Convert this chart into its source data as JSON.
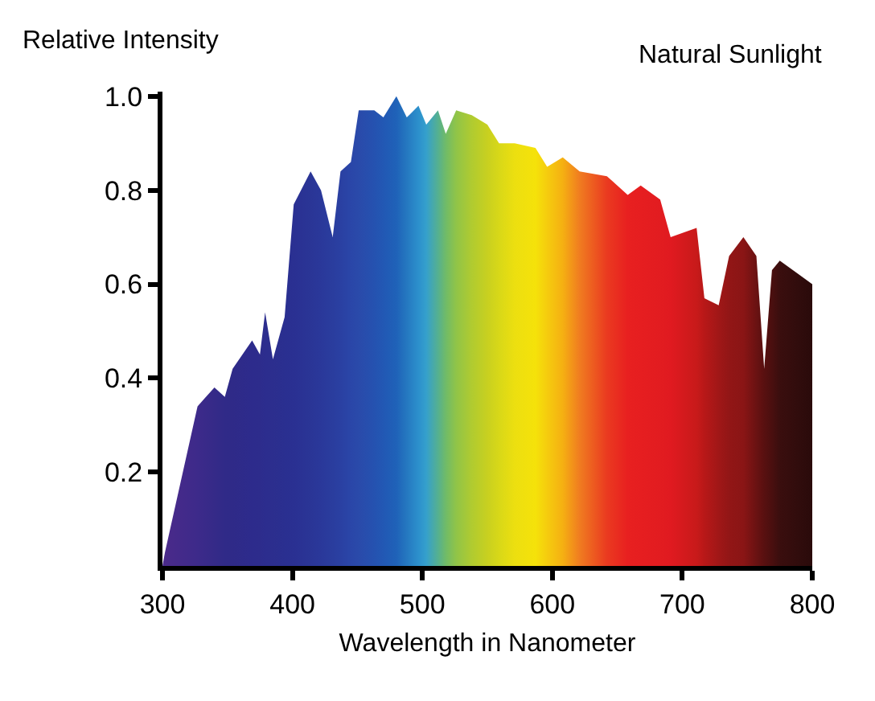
{
  "chart_data": {
    "type": "area",
    "title": "Natural Sunlight",
    "ylabel": "Relative Intensity",
    "xlabel": "Wavelength in Nanometer",
    "xlim": [
      300,
      800
    ],
    "xticks": [
      300,
      400,
      500,
      600,
      700,
      800
    ],
    "ylim": [
      0,
      1.01
    ],
    "yticks": [
      {
        "value": 0.2,
        "label": "0.2"
      },
      {
        "value": 0.4,
        "label": "0.4"
      },
      {
        "value": 0.6,
        "label": "0.6"
      },
      {
        "value": 0.8,
        "label": "0.8"
      },
      {
        "value": 1,
        "label": "1.0"
      }
    ],
    "legend": false,
    "series": [
      {
        "x": [
          300,
          302,
          327,
          340,
          348,
          354,
          369,
          375,
          379,
          385,
          394,
          401,
          414,
          422,
          431,
          437,
          445,
          451,
          463,
          470,
          480,
          488,
          497,
          503,
          512,
          518,
          526,
          538,
          550,
          559,
          571,
          587,
          596,
          608,
          621,
          642,
          658,
          668,
          683,
          691,
          711,
          717,
          728,
          736,
          747,
          757,
          763,
          769,
          775,
          790,
          800
        ],
        "values": [
          0,
          0.03,
          0.34,
          0.38,
          0.36,
          0.42,
          0.48,
          0.45,
          0.54,
          0.44,
          0.53,
          0.77,
          0.84,
          0.8,
          0.7,
          0.84,
          0.86,
          0.97,
          0.97,
          0.955,
          1.0,
          0.955,
          0.98,
          0.94,
          0.97,
          0.92,
          0.97,
          0.96,
          0.94,
          0.9,
          0.9,
          0.89,
          0.85,
          0.87,
          0.84,
          0.83,
          0.79,
          0.81,
          0.78,
          0.7,
          0.72,
          0.57,
          0.555,
          0.66,
          0.7,
          0.66,
          0.42,
          0.63,
          0.65,
          0.62,
          0.6
        ],
        "colors": [
          "#4a2a8a",
          "#4a2a8a",
          "#3d2a8a",
          "#352a88",
          "#302a88",
          "#2f2a88",
          "#2d2b8c",
          "#2d2c8c",
          "#2c2d8e",
          "#2c2e8e",
          "#2a2f90",
          "#2a3092",
          "#2a3596",
          "#2a389a",
          "#2a3d9e",
          "#2a40a2",
          "#2a46a8",
          "#2a4aaa",
          "#2552b0",
          "#2258b4",
          "#1f62b8",
          "#2578c0",
          "#2c90cc",
          "#35a0cc",
          "#55b090",
          "#70bb68",
          "#90c448",
          "#b0cb30",
          "#c8d020",
          "#d8d818",
          "#ecdf10",
          "#f5e20a",
          "#f5cc0e",
          "#f5b012",
          "#f07c20",
          "#ea3a20",
          "#e82020",
          "#e61e20",
          "#e21c20",
          "#e01a20",
          "#c81a1a",
          "#b81818",
          "#a01717",
          "#921616",
          "#8a1515",
          "#6a1212",
          "#581010",
          "#4a0f0f",
          "#3a0e0e",
          "#300c0c",
          "#2a0a0a"
        ]
      }
    ]
  }
}
